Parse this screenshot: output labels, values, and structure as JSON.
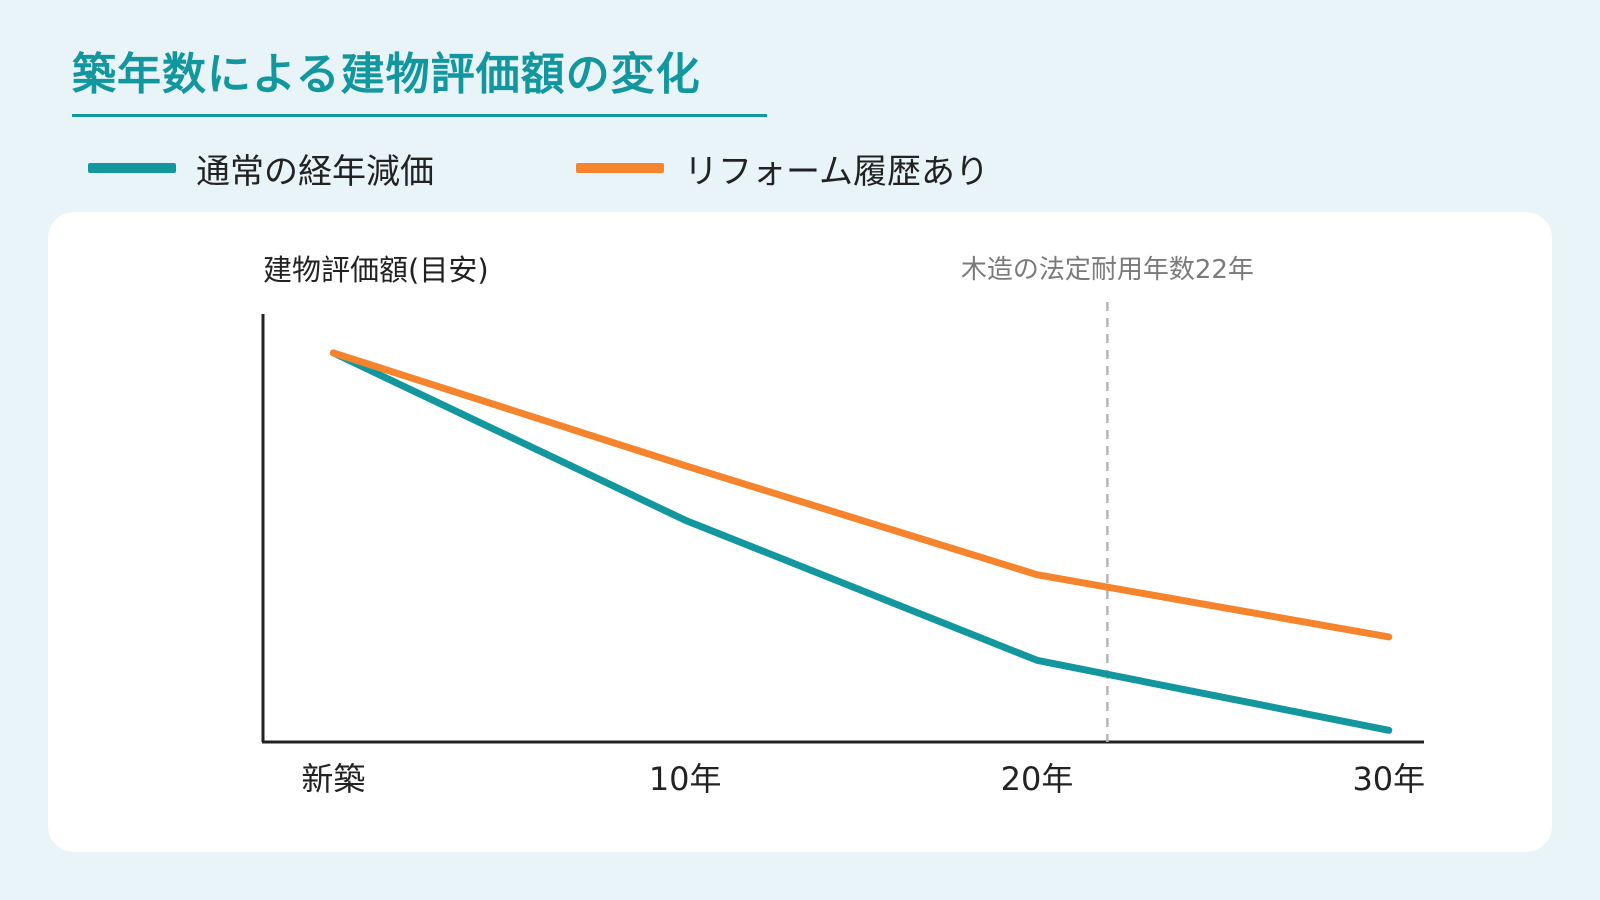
{
  "header": {
    "title": "築年数による建物評価額の変化"
  },
  "legend": [
    {
      "label": "通常の経年減価",
      "color": "#13979f"
    },
    {
      "label": "リフォーム履歴あり",
      "color": "#f5842d"
    }
  ],
  "chart_data": {
    "type": "line",
    "title": "築年数による建物評価額の変化",
    "xlabel": "",
    "ylabel": "建物評価額(目安)",
    "grid": false,
    "legend_position": "top-left",
    "categories": [
      "新築",
      "10年",
      "20年",
      "30年"
    ],
    "x": [
      0,
      10,
      20,
      30
    ],
    "xlim": [
      -2,
      31
    ],
    "ylim": [
      0,
      110
    ],
    "series": [
      {
        "name": "通常の経年減価",
        "color": "#13979f",
        "values": [
          100,
          57,
          21,
          3
        ]
      },
      {
        "name": "リフォーム履歴あり",
        "color": "#f5842d",
        "values": [
          100,
          71,
          43,
          27
        ]
      }
    ],
    "annotations": [
      {
        "type": "vline",
        "x": 22,
        "label": "木造の法定耐用年数22年",
        "color": "#b5b5b5"
      }
    ]
  }
}
